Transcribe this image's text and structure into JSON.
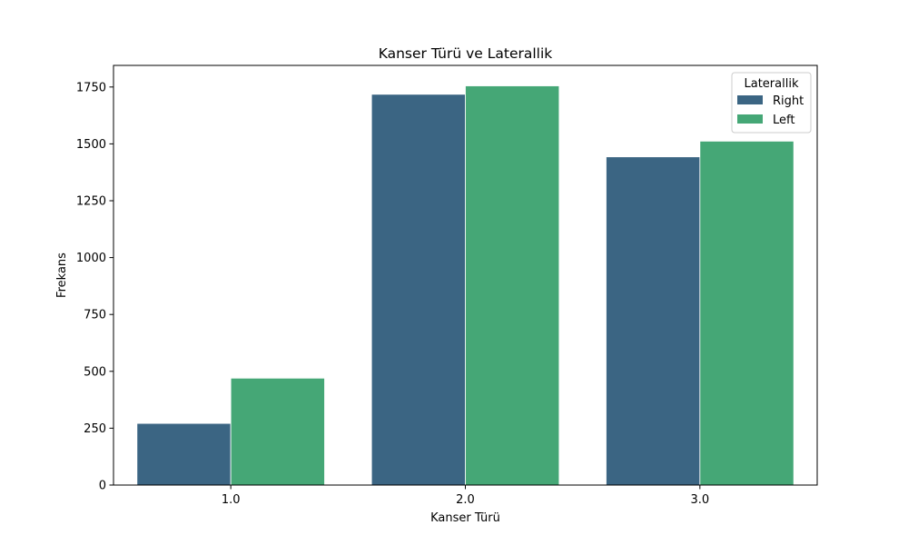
{
  "chart_data": {
    "type": "bar",
    "title": "Kanser Türü ve Laterallik",
    "xlabel": "Kanser Türü",
    "ylabel": "Frekans",
    "categories": [
      "1.0",
      "2.0",
      "3.0"
    ],
    "series": [
      {
        "name": "Right",
        "values": [
          271,
          1718,
          1443
        ],
        "color": "#3b6583"
      },
      {
        "name": "Left",
        "values": [
          470,
          1755,
          1512
        ],
        "color": "#45a776"
      }
    ],
    "ylim": [
      0,
      1845
    ],
    "yticks": [
      0,
      250,
      500,
      750,
      1000,
      1250,
      1500,
      1750
    ],
    "grid": false,
    "legend": {
      "title": "Laterallik",
      "position": "top-right"
    }
  }
}
